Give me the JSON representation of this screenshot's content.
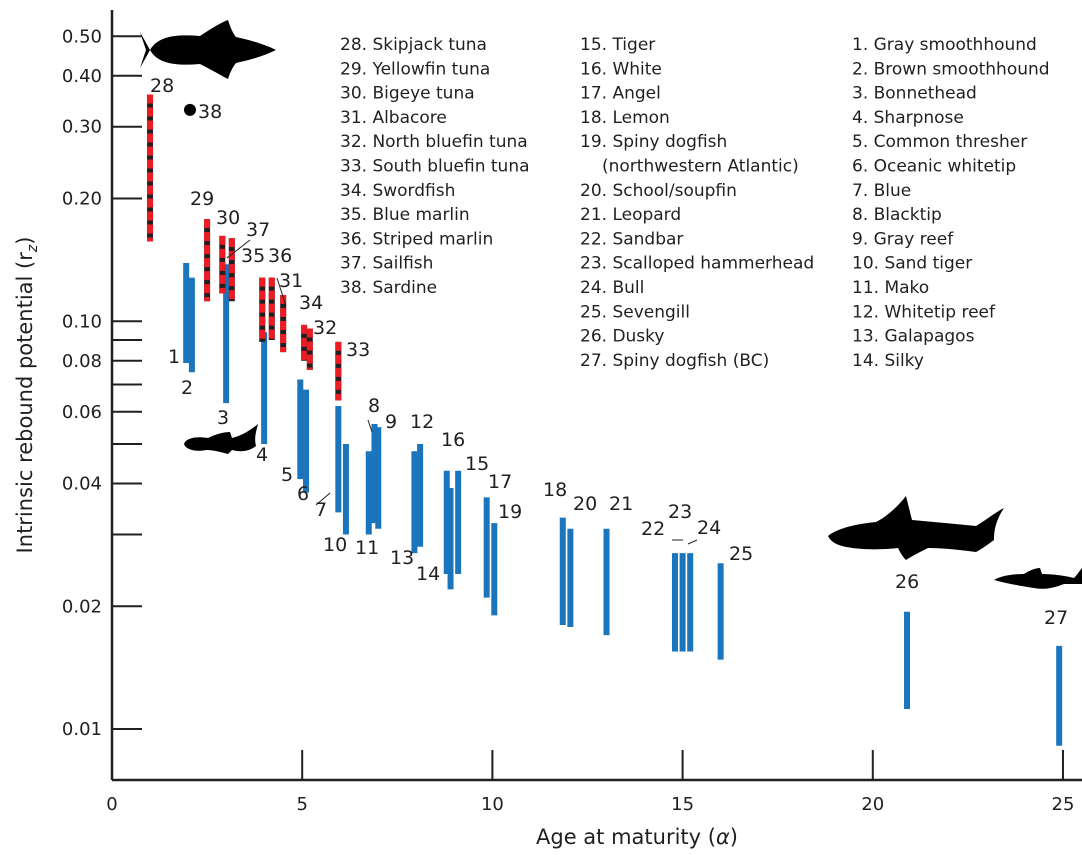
{
  "chart_data": {
    "type": "range",
    "xlabel": "Age at maturity (",
    "xlabel_symbol": "α",
    "xlabel_end": ")",
    "ylabel": "Intrinsic rebound potential (r",
    "ylabel_sub": "z",
    "ylabel_end": ")",
    "y_scale": "log",
    "xlim": [
      0,
      25.5
    ],
    "ylim": [
      0.0075,
      0.58
    ],
    "x_ticks": [
      "0",
      "5",
      "10",
      "15",
      "20",
      "25"
    ],
    "y_ticks": [
      "0.01",
      "0.02",
      "0.04",
      "0.06",
      "0.08",
      "0.10",
      "0.20",
      "0.30",
      "0.40",
      "0.50"
    ],
    "grid": false,
    "legend_columns": [
      [
        "28. Skipjack tuna",
        "29. Yellowfin tuna",
        "30. Bigeye tuna",
        "31. Albacore",
        "32. North bluefin tuna",
        "33. South bluefin tuna",
        "34. Swordfish",
        "35. Blue marlin",
        "36. Striped marlin",
        "37. Sailfish",
        "38. Sardine"
      ],
      [
        "15. Tiger",
        "16. White",
        "17. Angel",
        "18. Lemon",
        "19. Spiny dogfish",
        "(northwestern Atlantic)",
        "20. School/soupfin",
        "21. Leopard",
        "22. Sandbar",
        "23. Scalloped hammerhead",
        "24. Bull",
        "25. Sevengill",
        "26. Dusky",
        "27. Spiny dogfish (BC)"
      ],
      [
        "1. Gray smoothhound",
        "2. Brown smoothhound",
        "3. Bonnethead",
        "4. Sharpnose",
        "5. Common thresher",
        "6. Oceanic whitetip",
        "7. Blue",
        "8. Blacktip",
        "9. Gray reef",
        "10. Sand tiger",
        "11. Mako",
        "12. Whitetip reef",
        "13. Galapagos",
        "14. Silky"
      ]
    ],
    "series": [
      {
        "style": "shark",
        "color": "#1b75bc",
        "ranges": [
          {
            "id": "1",
            "x": 1.95,
            "low": 0.079,
            "high": 0.139
          },
          {
            "id": "2",
            "x": 2.1,
            "low": 0.075,
            "high": 0.128
          },
          {
            "id": "3",
            "x": 3.0,
            "low": 0.063,
            "high": 0.138
          },
          {
            "id": "4",
            "x": 4.0,
            "low": 0.05,
            "high": 0.094
          },
          {
            "id": "5",
            "x": 4.95,
            "low": 0.041,
            "high": 0.072
          },
          {
            "id": "6",
            "x": 5.1,
            "low": 0.038,
            "high": 0.068
          },
          {
            "id": "7",
            "x": 5.95,
            "low": 0.034,
            "high": 0.062
          },
          {
            "id": "8",
            "x": 6.75,
            "low": 0.03,
            "high": 0.048
          },
          {
            "id": "9",
            "x": 7.0,
            "low": 0.031,
            "high": 0.055
          },
          {
            "id": "10",
            "x": 6.15,
            "low": 0.03,
            "high": 0.05
          },
          {
            "id": "11",
            "x": 6.9,
            "low": 0.032,
            "high": 0.056
          },
          {
            "id": "12",
            "x": 8.1,
            "low": 0.028,
            "high": 0.05
          },
          {
            "id": "13",
            "x": 7.95,
            "low": 0.027,
            "high": 0.048
          },
          {
            "id": "14",
            "x": 8.9,
            "low": 0.022,
            "high": 0.039
          },
          {
            "id": "15",
            "x": 9.1,
            "low": 0.024,
            "high": 0.043
          },
          {
            "id": "16",
            "x": 8.8,
            "low": 0.024,
            "high": 0.043
          },
          {
            "id": "17",
            "x": 9.85,
            "low": 0.021,
            "high": 0.037
          },
          {
            "id": "18",
            "x": 11.85,
            "low": 0.018,
            "high": 0.033
          },
          {
            "id": "19",
            "x": 10.05,
            "low": 0.019,
            "high": 0.032
          },
          {
            "id": "20",
            "x": 12.05,
            "low": 0.0178,
            "high": 0.031
          },
          {
            "id": "21",
            "x": 13.0,
            "low": 0.017,
            "high": 0.031
          },
          {
            "id": "22",
            "x": 14.8,
            "low": 0.0155,
            "high": 0.027
          },
          {
            "id": "23",
            "x": 15.0,
            "low": 0.0155,
            "high": 0.027
          },
          {
            "id": "24",
            "x": 15.2,
            "low": 0.0155,
            "high": 0.027
          },
          {
            "id": "25",
            "x": 16.0,
            "low": 0.0148,
            "high": 0.0255
          },
          {
            "id": "26",
            "x": 20.9,
            "low": 0.0112,
            "high": 0.0194
          },
          {
            "id": "27",
            "x": 24.9,
            "low": 0.0091,
            "high": 0.016
          }
        ]
      },
      {
        "style": "teleost",
        "color": "#ed1c24",
        "ranges": [
          {
            "id": "28",
            "x": 1.0,
            "low": 0.157,
            "high": 0.36
          },
          {
            "id": "29",
            "x": 2.5,
            "low": 0.112,
            "high": 0.178
          },
          {
            "id": "30",
            "x": 2.9,
            "low": 0.117,
            "high": 0.162
          },
          {
            "id": "31",
            "x": 4.5,
            "low": 0.084,
            "high": 0.116
          },
          {
            "id": "32",
            "x": 5.05,
            "low": 0.08,
            "high": 0.098
          },
          {
            "id": "33",
            "x": 5.95,
            "low": 0.064,
            "high": 0.089
          },
          {
            "id": "34",
            "x": 5.2,
            "low": 0.076,
            "high": 0.096
          },
          {
            "id": "35",
            "x": 3.95,
            "low": 0.089,
            "high": 0.128
          },
          {
            "id": "36",
            "x": 4.2,
            "low": 0.09,
            "high": 0.128
          },
          {
            "id": "37",
            "x": 3.15,
            "low": 0.112,
            "high": 0.16
          }
        ]
      }
    ],
    "points": [
      {
        "id": "38",
        "x": 2.05,
        "y": 0.33
      }
    ]
  }
}
